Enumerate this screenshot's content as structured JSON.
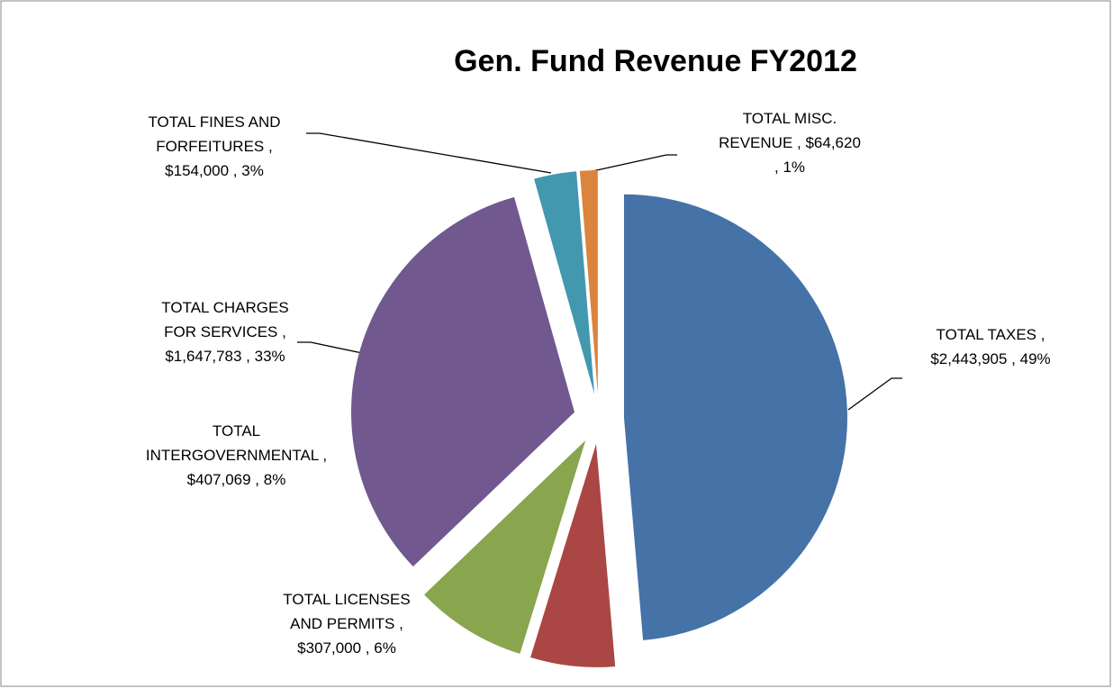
{
  "chart_data": {
    "type": "pie",
    "title": "Gen. Fund Revenue FY2012",
    "categories": [
      "TOTAL TAXES",
      "TOTAL LICENSES AND PERMITS",
      "TOTAL INTERGOVERNMENTAL",
      "TOTAL CHARGES FOR SERVICES",
      "TOTAL FINES AND FORFEITURES",
      "TOTAL MISC. REVENUE"
    ],
    "values": [
      2443905,
      307000,
      407069,
      1647783,
      154000,
      64620
    ],
    "value_labels": [
      "$2,443,905",
      "$307,000",
      "$407,069",
      "$1,647,783",
      "$154,000",
      "$64,620"
    ],
    "percent_labels": [
      "49%",
      "6%",
      "8%",
      "33%",
      "3%",
      "1%"
    ],
    "label_separator": " , ",
    "colors": [
      "#4572a7",
      "#aa4643",
      "#89a54e",
      "#71588f",
      "#4198af",
      "#db843d"
    ],
    "exploded": true
  }
}
